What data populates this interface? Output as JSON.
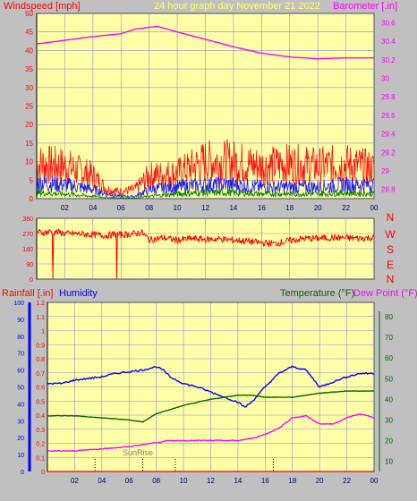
{
  "colors": {
    "background": "#c0c0c0",
    "plot_bg": "#ffffa8",
    "grid": "#8f8fc8",
    "wind_gust": "#ff1010",
    "wind_avg": "#1a1aff",
    "wind_low": "#008000",
    "barometer": "#ff00ff",
    "wind_dir": "#ff0000",
    "rain": "#ff0000",
    "humidity": "#0000ff",
    "temperature": "#006400",
    "dew_point": "#ff00ff",
    "title": "#ffff66"
  },
  "header": {
    "left_label": "Windspeed [mph]",
    "title": "24 hour graph day   November 21 2022",
    "right_label": "Barometer [.in]"
  },
  "bottom_header": {
    "rain_label": "Rainfall [.in]",
    "humidity_label": "Humidity",
    "temp_label": "Temperature (°F)",
    "dew_label": "Dew Point (°F)"
  },
  "sunrise_label": "SunRise",
  "compass": [
    "N",
    "W",
    "S",
    "E",
    "N"
  ],
  "chart_data": [
    {
      "type": "line",
      "title": "24 hour graph day   November 21 2022",
      "x_ticks": [
        "02",
        "04",
        "06",
        "08",
        "10",
        "12",
        "14",
        "16",
        "18",
        "20",
        "22",
        "00"
      ],
      "y_left": {
        "label": "Windspeed [mph]",
        "ticks": [
          "0",
          "5",
          "10",
          "15",
          "20",
          "25",
          "30",
          "35",
          "40",
          "45",
          "50"
        ],
        "ylim": [
          0,
          50
        ]
      },
      "y_right": {
        "label": "Barometer [.in]",
        "ticks": [
          "28.8",
          "29",
          "29.2",
          "29.4",
          "29.6",
          "29.8",
          "30",
          "30.2",
          "30.4",
          "30.6"
        ],
        "ylim": [
          28.7,
          30.7
        ]
      },
      "series": [
        {
          "name": "Barometer",
          "axis": "right",
          "x": [
            0,
            2,
            4,
            6,
            7,
            8,
            8.6,
            10,
            12,
            14,
            16,
            18,
            20,
            22,
            24
          ],
          "values": [
            30.37,
            30.41,
            30.45,
            30.48,
            30.53,
            30.55,
            30.56,
            30.5,
            30.42,
            30.34,
            30.27,
            30.23,
            30.21,
            30.22,
            30.22
          ]
        },
        {
          "axis": "left",
          "x": [
            0,
            2,
            4,
            5,
            6,
            7,
            8,
            10,
            12,
            14,
            16,
            18,
            20,
            22,
            24
          ],
          "values": [
            15,
            14,
            10,
            4,
            3,
            4,
            10,
            11,
            16,
            16,
            14,
            15,
            14,
            15,
            13
          ]
        },
        {
          "axis": "left",
          "x": [
            0,
            2,
            4,
            5,
            6,
            7,
            8,
            10,
            12,
            14,
            16,
            18,
            20,
            22,
            24
          ],
          "values": [
            7,
            6,
            4,
            2,
            1,
            1,
            4,
            5,
            6,
            6,
            5,
            5,
            5,
            6,
            6
          ]
        },
        {
          "axis": "left",
          "x": [
            0,
            2,
            4,
            5,
            6,
            7,
            8,
            10,
            12,
            14,
            16,
            18,
            20,
            22,
            24
          ],
          "values": [
            2.5,
            2,
            1,
            0.5,
            0.3,
            0.3,
            1,
            2,
            2.5,
            2.5,
            2,
            2,
            2,
            2.5,
            2
          ]
        }
      ]
    },
    {
      "type": "line",
      "y_left": {
        "ticks": [
          "0",
          "90",
          "180",
          "270",
          "360"
        ],
        "ylim": [
          0,
          360
        ]
      },
      "y_right": {
        "ticks": [
          "N",
          "W",
          "S",
          "E",
          "N"
        ]
      },
      "series": [
        {
          "axis": "left",
          "x": [
            0,
            0.5,
            1,
            1.5,
            2,
            3,
            4,
            5,
            5.5,
            6,
            7,
            7.5,
            8,
            9,
            10,
            11,
            12,
            13,
            14,
            15,
            16,
            17,
            18,
            19,
            20,
            21,
            22,
            23,
            24
          ],
          "values": [
            280,
            275,
            282,
            278,
            270,
            268,
            262,
            258,
            265,
            262,
            270,
            275,
            232,
            245,
            230,
            240,
            235,
            238,
            230,
            225,
            215,
            210,
            228,
            240,
            242,
            245,
            244,
            242,
            246
          ]
        }
      ]
    },
    {
      "type": "line",
      "y_left": {
        "label": "Rainfall [.in]",
        "ticks": [
          "0",
          "0.1",
          "0.2",
          "0.3",
          "0.4",
          "0.5",
          "0.6",
          "0.7",
          "0.8",
          "0.9",
          "1",
          "1.1",
          "1.2"
        ],
        "ylim": [
          0,
          1.2
        ]
      },
      "y_humidity": {
        "label": "Humidity",
        "ticks": [
          "0",
          "10",
          "20",
          "30",
          "40",
          "50",
          "60",
          "70",
          "80",
          "90",
          "100"
        ],
        "ylim": [
          0,
          100
        ]
      },
      "y_right": {
        "label": "Temperature (°F)",
        "ticks": [
          "10",
          "20",
          "30",
          "40",
          "50",
          "60",
          "70",
          "80"
        ],
        "ylim": [
          5,
          87
        ]
      },
      "series": [
        {
          "name": "Humidity",
          "axis": "humidity",
          "x": [
            0,
            1,
            2,
            3,
            4,
            5,
            6,
            7,
            8,
            8.5,
            9,
            10,
            11,
            12,
            13,
            14,
            14.5,
            15,
            16,
            17,
            18,
            19,
            20,
            21,
            22,
            23,
            24
          ],
          "values": [
            52,
            52,
            54,
            55,
            56,
            58,
            59,
            60,
            62,
            60,
            56,
            52,
            50,
            47,
            44,
            41,
            38,
            41,
            50,
            58,
            62,
            60,
            50,
            53,
            56,
            58,
            58
          ]
        },
        {
          "name": "Temperature (°F)",
          "axis": "right",
          "x": [
            0,
            2,
            4,
            6,
            7,
            8,
            9,
            10,
            12,
            14,
            15,
            16,
            17,
            18,
            19,
            20,
            22,
            24
          ],
          "values": [
            32,
            32,
            31,
            30,
            29,
            33,
            35,
            37,
            40,
            42,
            42,
            41,
            41,
            41,
            42,
            43,
            44,
            44
          ]
        },
        {
          "name": "Dew Point (°F)",
          "axis": "right",
          "x": [
            0,
            2,
            4,
            6,
            7,
            8,
            9,
            10,
            12,
            14,
            15,
            16,
            17,
            18,
            19,
            20,
            21,
            22,
            23,
            24
          ],
          "values": [
            15,
            15,
            16,
            17,
            18,
            19,
            20,
            20,
            20,
            20,
            21,
            23,
            26,
            31,
            32,
            28,
            28,
            31,
            33,
            31
          ]
        },
        {
          "name": "Rainfall [.in]",
          "axis": "left",
          "x": [
            0,
            24
          ],
          "values": [
            0,
            0
          ]
        }
      ]
    }
  ]
}
